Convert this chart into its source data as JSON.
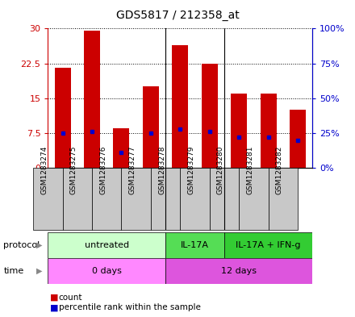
{
  "title": "GDS5817 / 212358_at",
  "samples": [
    "GSM1283274",
    "GSM1283275",
    "GSM1283276",
    "GSM1283277",
    "GSM1283278",
    "GSM1283279",
    "GSM1283280",
    "GSM1283281",
    "GSM1283282"
  ],
  "counts": [
    21.5,
    29.5,
    8.5,
    17.5,
    26.5,
    22.5,
    16.0,
    16.0,
    12.5
  ],
  "percentile_ranks": [
    25,
    26,
    11,
    25,
    28,
    26,
    22,
    22,
    20
  ],
  "ylim_left": [
    0,
    30
  ],
  "ylim_right": [
    0,
    100
  ],
  "yticks_left": [
    0,
    7.5,
    15,
    22.5,
    30
  ],
  "yticks_right": [
    0,
    25,
    50,
    75,
    100
  ],
  "bar_color": "#cc0000",
  "dot_color": "#0000cc",
  "bar_width": 0.55,
  "protocol_groups": [
    {
      "label": "untreated",
      "start": 0,
      "end": 4,
      "color": "#ccffcc"
    },
    {
      "label": "IL-17A",
      "start": 4,
      "end": 6,
      "color": "#55dd55"
    },
    {
      "label": "IL-17A + IFN-g",
      "start": 6,
      "end": 9,
      "color": "#33cc33"
    }
  ],
  "time_groups": [
    {
      "label": "0 days",
      "start": 0,
      "end": 4,
      "color": "#ff88ff"
    },
    {
      "label": "12 days",
      "start": 4,
      "end": 9,
      "color": "#dd55dd"
    }
  ],
  "protocol_label": "protocol",
  "time_label": "time",
  "grid_color": "black",
  "left_axis_color": "#cc0000",
  "right_axis_color": "#0000cc",
  "plot_bg_color": "#ffffff",
  "sample_box_color": "#c8c8c8",
  "legend_count_label": "count",
  "legend_percentile_label": "percentile rank within the sample",
  "group_sep_indices": [
    4,
    6
  ]
}
